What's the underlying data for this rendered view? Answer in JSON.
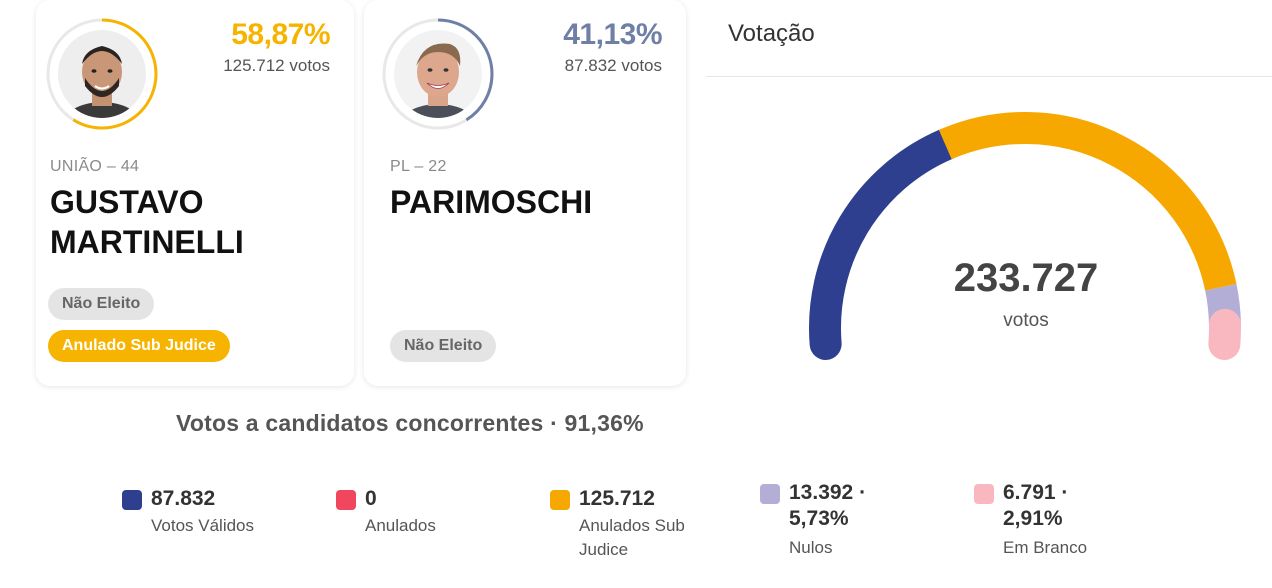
{
  "candidates": [
    {
      "percent": "58,87%",
      "votes": "125.712 votos",
      "party": "UNIÃO – 44",
      "name_line1": "GUSTAVO",
      "name_line2": "MARTINELLI",
      "badges": [
        "Não Eleito",
        "Anulado Sub Judice"
      ],
      "color": "#f6b400",
      "ring_fraction": 0.5887
    },
    {
      "percent": "41,13%",
      "votes": "87.832 votos",
      "party": "PL – 22",
      "name_line1": "PARIMOSCHI",
      "badges": [
        "Não Eleito"
      ],
      "color": "#6f7fa6",
      "ring_fraction": 0.4113
    }
  ],
  "voting": {
    "title": "Votação",
    "total": "233.727",
    "total_label": "votos"
  },
  "summary": {
    "concorrentes": "Votos a candidatos concorrentes · 91,36%"
  },
  "legend": [
    {
      "value": "87.832",
      "label": "Votos Válidos",
      "color": "#2f3f8f",
      "count": 87832
    },
    {
      "value": "0",
      "label": "Anulados",
      "color": "#f0465e",
      "count": 0
    },
    {
      "value": "125.712",
      "label": "Anulados Sub",
      "label2": "Judice",
      "color": "#f6a800",
      "count": 125712
    },
    {
      "value": "13.392 ·",
      "value2": "5,73%",
      "label": "Nulos",
      "color": "#b3aed6",
      "count": 13392
    },
    {
      "value": "6.791 ·",
      "value2": "2,91%",
      "label": "Em Branco",
      "color": "#f9b8c0",
      "count": 6791
    }
  ]
}
